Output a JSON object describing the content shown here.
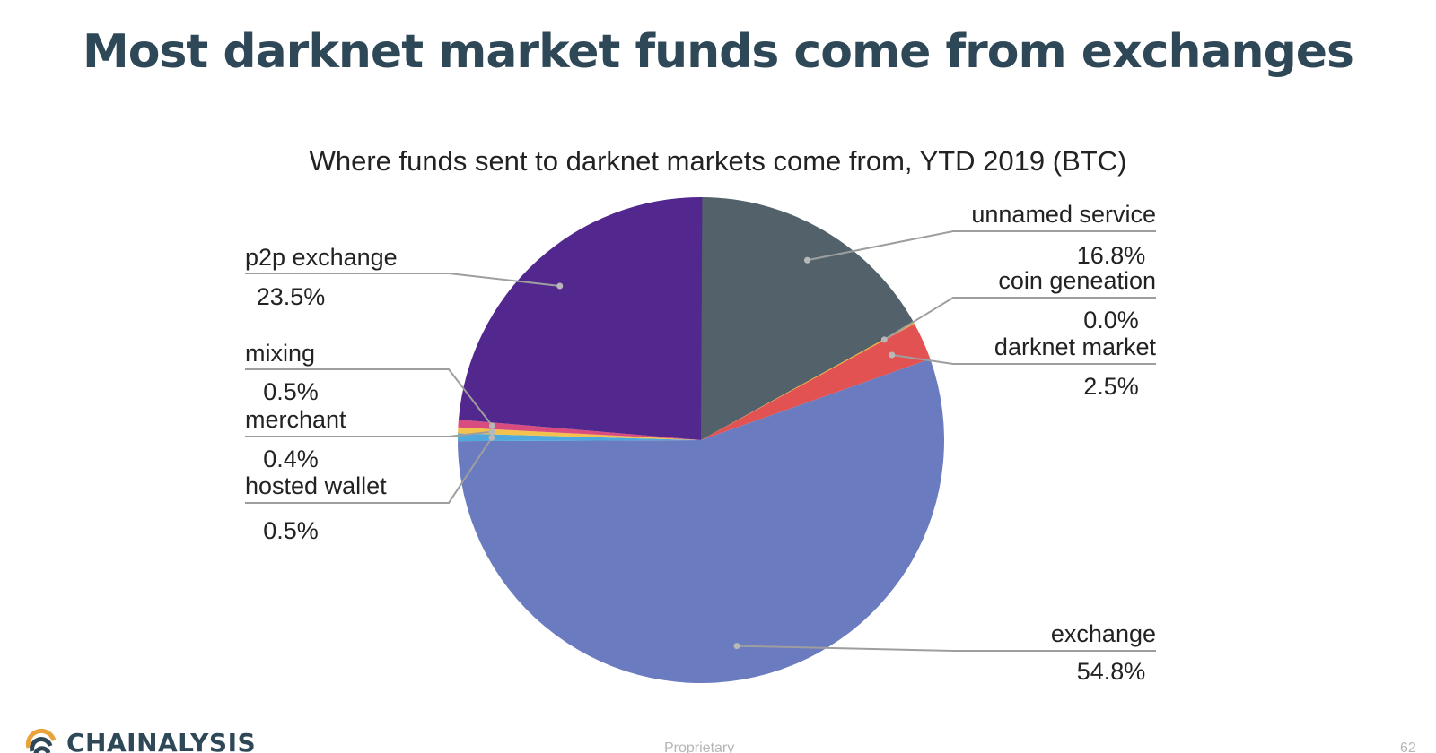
{
  "slide": {
    "title": "Most darknet market funds come from exchanges"
  },
  "chart_data": {
    "type": "pie",
    "title": "Where funds sent to darknet markets come from, YTD 2019 (BTC)",
    "legend": "none",
    "slices": [
      {
        "label": "unnamed service",
        "value": 16.8,
        "display": "16.8%",
        "color": "#53626a"
      },
      {
        "label": "coin geneation",
        "value": 0.0,
        "display": "0.0%",
        "color": "#e8b634"
      },
      {
        "label": "darknet market",
        "value": 2.5,
        "display": "2.5%",
        "color": "#e35252"
      },
      {
        "label": "exchange",
        "value": 54.8,
        "display": "54.8%",
        "color": "#6b7bbf"
      },
      {
        "label": "hosted wallet",
        "value": 0.5,
        "display": "0.5%",
        "color": "#4fa9dc"
      },
      {
        "label": "merchant",
        "value": 0.4,
        "display": "0.4%",
        "color": "#f2c14e"
      },
      {
        "label": "mixing",
        "value": 0.5,
        "display": "0.5%",
        "color": "#d94c7f"
      },
      {
        "label": "p2p exchange",
        "value": 23.5,
        "display": "23.5%",
        "color": "#52288f"
      }
    ]
  },
  "footer": {
    "brand": "CHAINALYSIS",
    "note": "Proprietary",
    "page": "62"
  }
}
